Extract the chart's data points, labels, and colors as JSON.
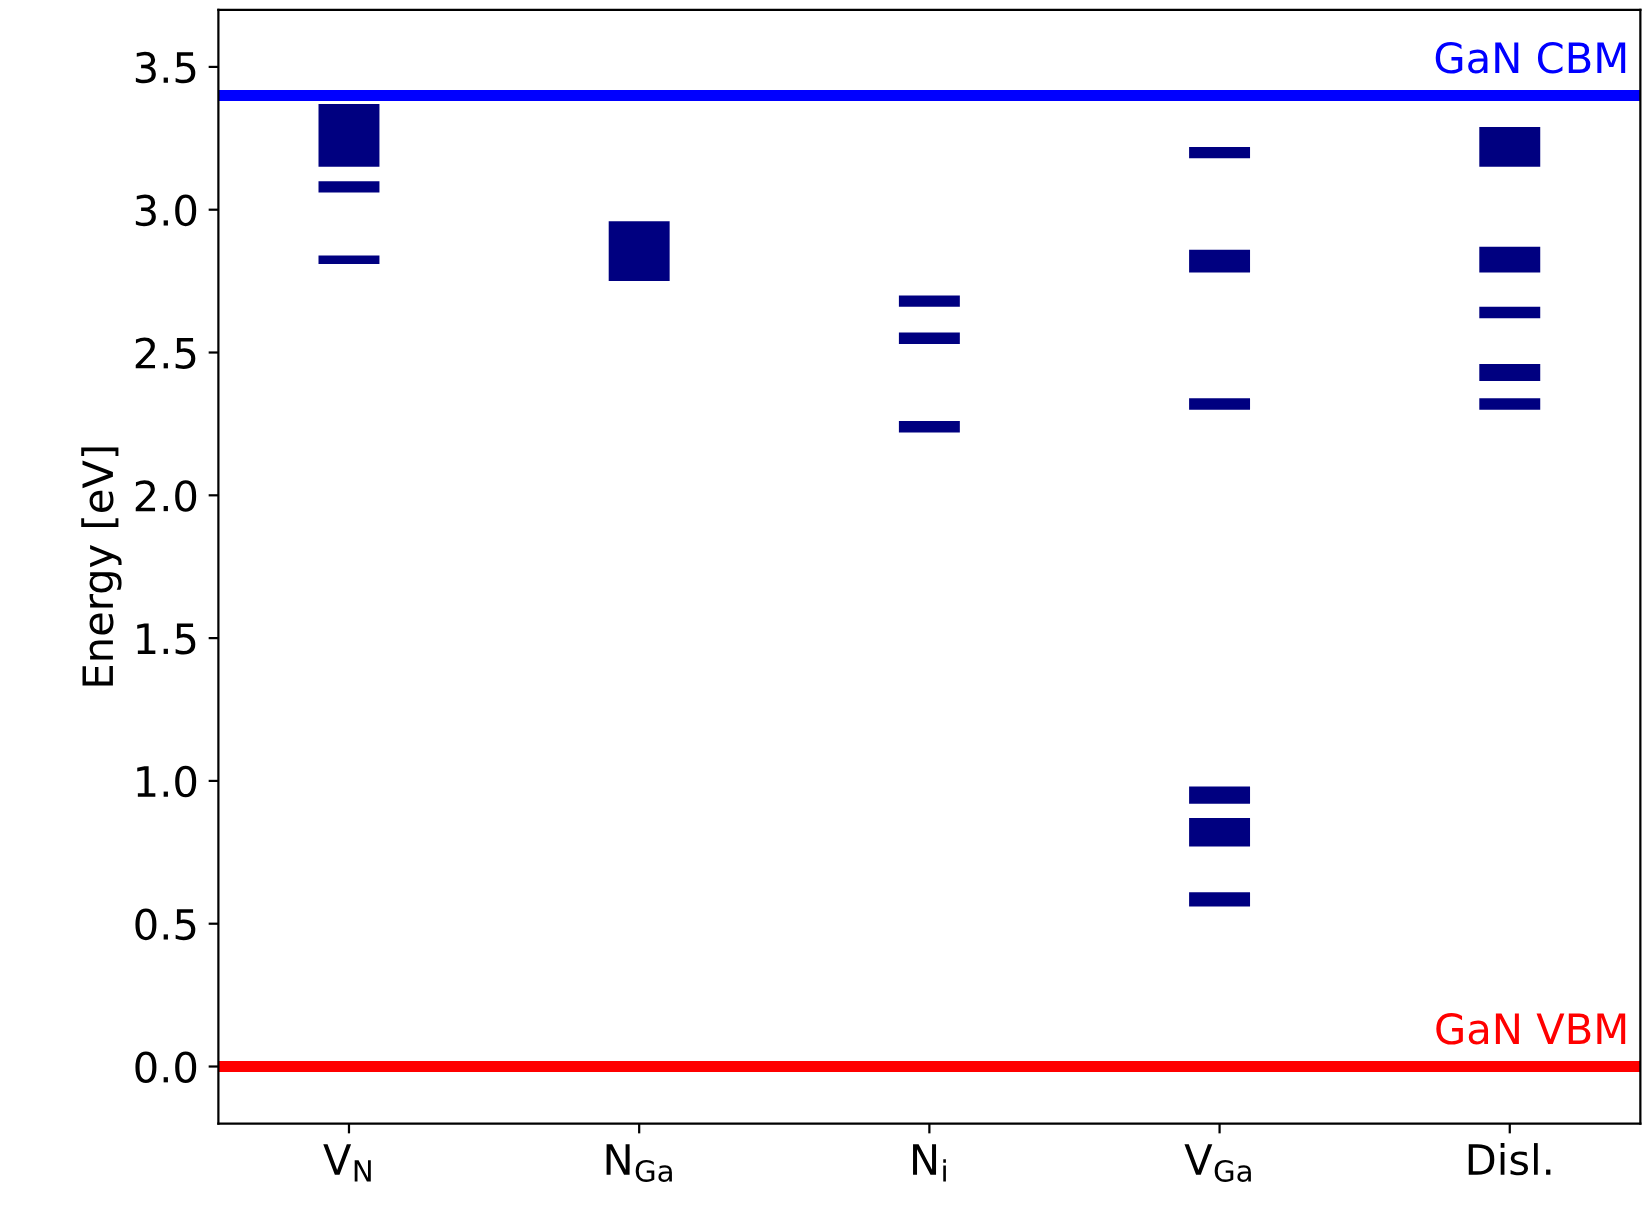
{
  "chart_data": {
    "type": "bar",
    "ylabel": "Energy [eV]",
    "categories": [
      "V$_{N}$",
      "N$_{Ga}$",
      "N$_{i}$",
      "V$_{Ga}$",
      "Disl."
    ],
    "series": [
      {
        "color": "#000080",
        "base": [
          3.15,
          2.75,
          2.66,
          3.18,
          3.15
        ],
        "values": [
          0.22,
          0.21,
          0.04,
          0.04,
          0.14
        ]
      },
      {
        "color": "#000080",
        "base": [
          3.06,
          null,
          2.53,
          2.78,
          2.78
        ],
        "values": [
          0.04,
          null,
          0.04,
          0.08,
          0.09
        ]
      },
      {
        "color": "#000080",
        "base": [
          2.81,
          null,
          2.22,
          2.3,
          2.62
        ],
        "values": [
          0.03,
          null,
          0.04,
          0.04,
          0.04
        ]
      },
      {
        "color": "#000080",
        "base": [
          null,
          null,
          null,
          0.92,
          2.4
        ],
        "values": [
          null,
          null,
          null,
          0.06,
          0.06
        ]
      },
      {
        "color": "#000080",
        "base": [
          null,
          null,
          null,
          0.77,
          2.3
        ],
        "values": [
          null,
          null,
          null,
          0.1,
          0.04
        ]
      },
      {
        "color": "#000080",
        "base": [
          null,
          null,
          null,
          0.56,
          null
        ],
        "values": [
          null,
          null,
          null,
          0.05,
          null
        ]
      }
    ],
    "ylim": [
      -0.2,
      3.7
    ],
    "yticks": [
      {
        "value": 0,
        "label": "0.0"
      },
      0.5,
      {
        "value": 1,
        "label": "1.0"
      },
      1.5,
      {
        "value": 2,
        "label": "2.0"
      },
      2.5,
      {
        "value": 3,
        "label": "3.0"
      },
      3.5
    ],
    "ref_lines": [
      {
        "axis": "y",
        "value": 3.4,
        "label": "GaN CBM",
        "color": "#0000ff"
      },
      {
        "axis": "y",
        "value": 0.0,
        "label": "GaN VBM",
        "color": "#ff0000"
      }
    ]
  }
}
